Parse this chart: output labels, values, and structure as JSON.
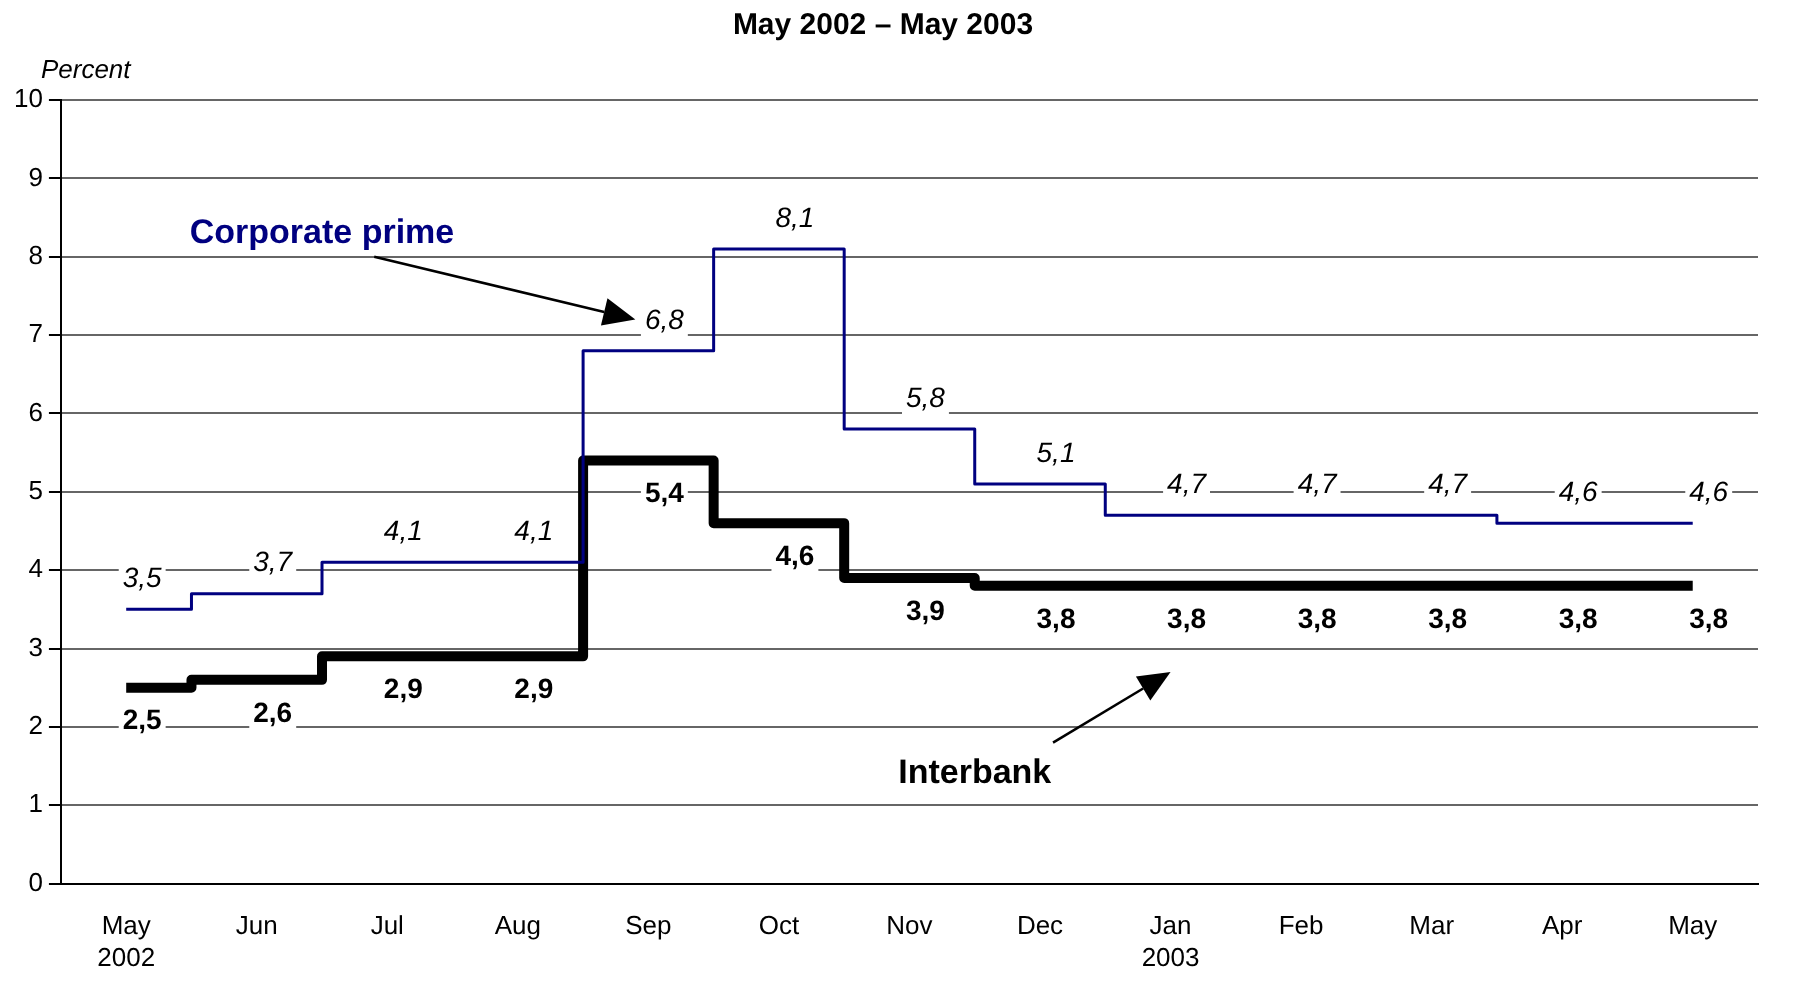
{
  "chart_data": {
    "type": "step",
    "title": "May 2002 – May 2003",
    "ylabel": "Percent",
    "categories": [
      "May\n2002",
      "Jun",
      "Jul",
      "Aug",
      "Sep",
      "Oct",
      "Nov",
      "Dec",
      "Jan\n2003",
      "Feb",
      "Mar",
      "Apr",
      "May"
    ],
    "series": [
      {
        "name": "Corporate prime",
        "color": "#000080",
        "values": [
          3.5,
          3.7,
          4.1,
          4.1,
          6.8,
          8.1,
          5.8,
          5.1,
          4.7,
          4.7,
          4.7,
          4.6,
          4.6
        ],
        "value_labels": [
          "3,5",
          "3,7",
          "4,1",
          "4,1",
          "6,8",
          "8,1",
          "5,8",
          "5,1",
          "4,7",
          "4,7",
          "4,7",
          "4,6",
          "4,6"
        ]
      },
      {
        "name": "Interbank",
        "color": "#000000",
        "values": [
          2.5,
          2.6,
          2.9,
          2.9,
          5.4,
          4.6,
          3.9,
          3.8,
          3.8,
          3.8,
          3.8,
          3.8,
          3.8
        ],
        "value_labels": [
          "2,5",
          "2,6",
          "2,9",
          "2,9",
          "5,4",
          "4,6",
          "3,9",
          "3,8",
          "3,8",
          "3,8",
          "3,8",
          "3,8",
          "3,8"
        ]
      }
    ],
    "ylim": [
      0,
      10
    ],
    "yticks": [
      0,
      1,
      2,
      3,
      4,
      5,
      6,
      7,
      8,
      9,
      10
    ],
    "grid": "y",
    "legend": false
  }
}
